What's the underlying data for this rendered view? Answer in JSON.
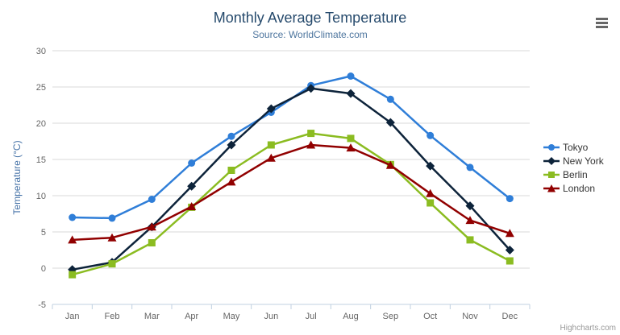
{
  "header": {
    "title": "Monthly Average Temperature",
    "subtitle": "Source: WorldClimate.com"
  },
  "credit": "Highcharts.com",
  "colors": {
    "title": "#274b6d",
    "subtitle": "#4d759e",
    "axis_label": "#666666",
    "axis_title": "#4572A7",
    "gridline": "#D8D8D8",
    "axis_line": "#C0D0E0",
    "legend_text": "#333333",
    "menu_icon": "#666666",
    "credit_text": "#999999"
  },
  "icons": {
    "context_menu": "hamburger-icon"
  },
  "chart_data": {
    "type": "line",
    "title": "Monthly Average Temperature",
    "subtitle": "Source: WorldClimate.com",
    "categories": [
      "Jan",
      "Feb",
      "Mar",
      "Apr",
      "May",
      "Jun",
      "Jul",
      "Aug",
      "Sep",
      "Oct",
      "Nov",
      "Dec"
    ],
    "series": [
      {
        "name": "Tokyo",
        "color": "#2f7ed8",
        "marker": "circle",
        "values": [
          7.0,
          6.9,
          9.5,
          14.5,
          18.2,
          21.5,
          25.2,
          26.5,
          23.3,
          18.3,
          13.9,
          9.6
        ]
      },
      {
        "name": "New York",
        "color": "#0d233a",
        "marker": "diamond",
        "values": [
          -0.2,
          0.8,
          5.7,
          11.3,
          17.0,
          22.0,
          24.8,
          24.1,
          20.1,
          14.1,
          8.6,
          2.5
        ]
      },
      {
        "name": "Berlin",
        "color": "#8bbc21",
        "marker": "square",
        "values": [
          -0.9,
          0.6,
          3.5,
          8.4,
          13.5,
          17.0,
          18.6,
          17.9,
          14.3,
          9.0,
          3.9,
          1.0
        ]
      },
      {
        "name": "London",
        "color": "#910000",
        "marker": "triangle",
        "values": [
          3.9,
          4.2,
          5.7,
          8.5,
          11.9,
          15.2,
          17.0,
          16.6,
          14.2,
          10.3,
          6.6,
          4.8
        ]
      }
    ],
    "xlabel": "",
    "ylabel": "Temperature (°C)",
    "ylim": [
      -5,
      30
    ],
    "ytick_step": 5,
    "grid": true,
    "legend_position": "right"
  }
}
